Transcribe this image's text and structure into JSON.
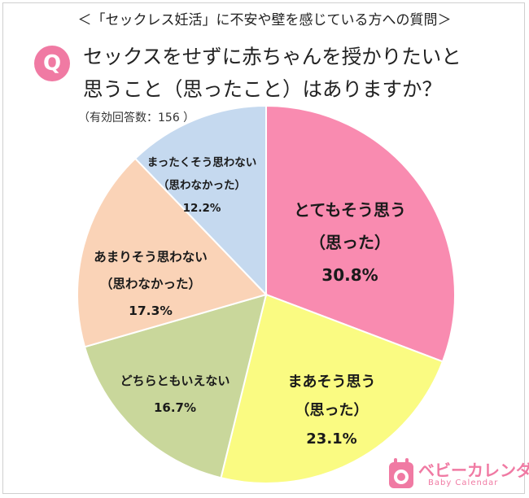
{
  "header": {
    "subtitle": "＜「セックレス妊活」に不安や壁を感じている方への質問＞",
    "badge": "Q",
    "title_line1": "セックスをせずに赤ちゃんを授かりたいと",
    "title_line2": "思うこと（思ったこと）はありますか？",
    "respondents": "（有効回答数：156 ）"
  },
  "chart_data": {
    "type": "pie",
    "title": "セックスをせずに赤ちゃんを授かりたいと思うこと（思ったこと）はありますか？",
    "slices": [
      {
        "label": "とてもそう思う",
        "sublabel": "（思った）",
        "value": 30.8,
        "value_label": "30.8%",
        "color": "#f98bb0"
      },
      {
        "label": "まあそう思う",
        "sublabel": "（思った）",
        "value": 23.1,
        "value_label": "23.1%",
        "color": "#fafb82"
      },
      {
        "label": "どちらともいえない",
        "sublabel": "",
        "value": 16.7,
        "value_label": "16.7%",
        "color": "#c9d79b"
      },
      {
        "label": "あまりそう思わない",
        "sublabel": "（思わなかった）",
        "value": 17.3,
        "value_label": "17.3%",
        "color": "#fad3b7"
      },
      {
        "label": "まったくそう思わない",
        "sublabel": "（思わなかった）",
        "value": 12.2,
        "value_label": "12.2%",
        "color": "#c5d9ef"
      }
    ],
    "start_angle": "12 o'clock",
    "direction": "clockwise"
  },
  "logo": {
    "name": "ベビーカレンダー",
    "sub": "Baby Calendar",
    "color": "#f07aa3"
  }
}
